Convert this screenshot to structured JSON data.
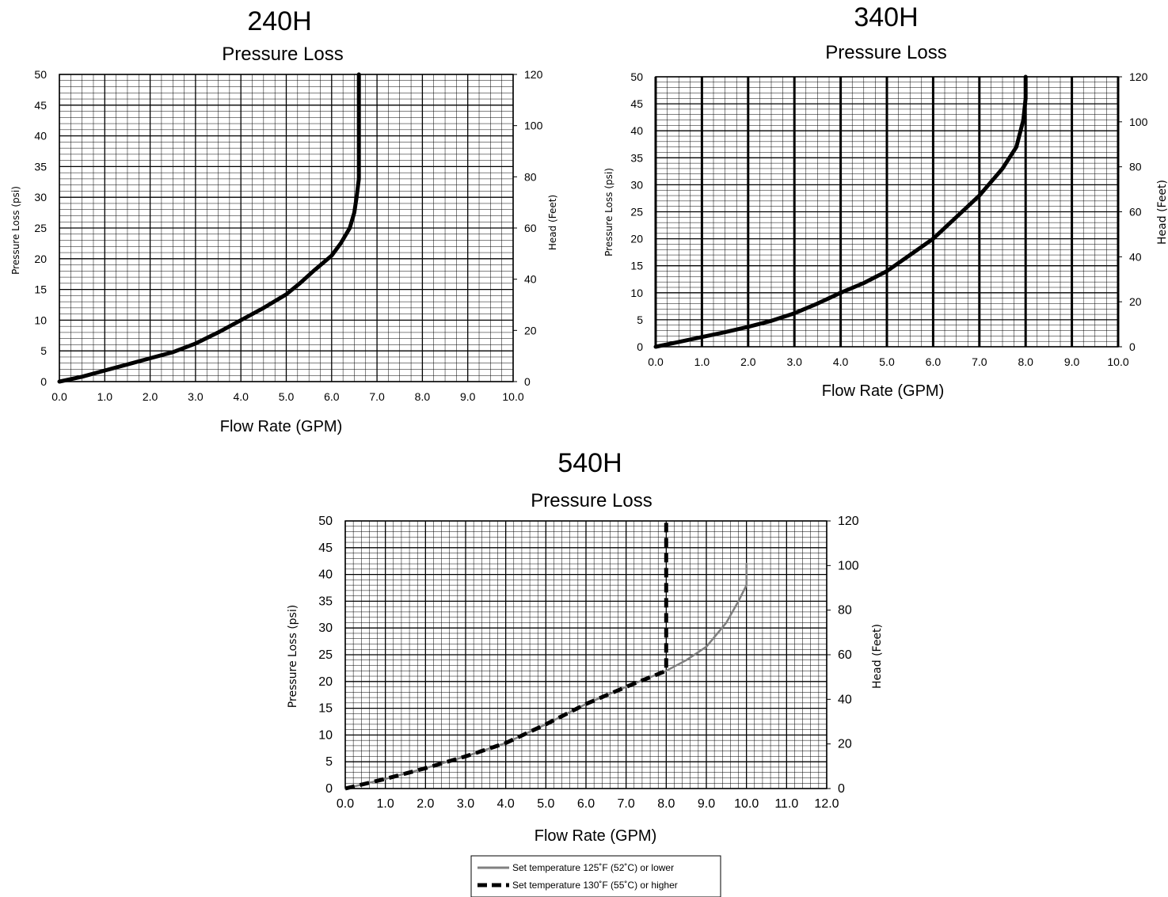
{
  "chart_data": [
    {
      "type": "line",
      "model": "240H",
      "title": "Pressure Loss",
      "xlabel": "Flow Rate (GPM)",
      "ylabel": "Pressure Loss (psi)",
      "y2label": "Head (Feet)",
      "xlim": [
        0,
        10
      ],
      "ylim": [
        0,
        50
      ],
      "y2lim": [
        0,
        120
      ],
      "x_ticks": [
        "0.0",
        "1.0",
        "2.0",
        "3.0",
        "4.0",
        "5.0",
        "6.0",
        "7.0",
        "8.0",
        "9.0",
        "10.0"
      ],
      "y_ticks": [
        "0",
        "5",
        "10",
        "15",
        "20",
        "25",
        "30",
        "35",
        "40",
        "45",
        "50"
      ],
      "y2_ticks": [
        "0",
        "20",
        "40",
        "60",
        "80",
        "100",
        "120"
      ],
      "grid": true,
      "series": [
        {
          "color": "#000000",
          "style": "solid",
          "x": [
            0,
            0.5,
            1.0,
            1.5,
            2.0,
            2.5,
            3.0,
            3.5,
            4.0,
            4.5,
            5.0,
            5.3,
            5.6,
            6.0,
            6.2,
            6.4,
            6.5,
            6.55,
            6.6,
            6.6,
            6.6
          ],
          "y": [
            0,
            0.8,
            1.8,
            2.8,
            3.8,
            4.8,
            6.2,
            8.0,
            10.0,
            12.0,
            14.2,
            16.0,
            18.0,
            20.5,
            22.5,
            25.0,
            27.5,
            30.0,
            33.0,
            40.0,
            50.0
          ]
        }
      ]
    },
    {
      "type": "line",
      "model": "340H",
      "title": "Pressure Loss",
      "xlabel": "Flow Rate (GPM)",
      "ylabel": "Pressure Loss (psi)",
      "y2label": "Head (Feet)",
      "xlim": [
        0,
        10
      ],
      "ylim": [
        0,
        50
      ],
      "y2lim": [
        0,
        120
      ],
      "x_ticks": [
        "0.0",
        "1.0",
        "2.0",
        "3.0",
        "4.0",
        "5.0",
        "6.0",
        "7.0",
        "8.0",
        "9.0",
        "10.0"
      ],
      "y_ticks": [
        "0",
        "5",
        "10",
        "15",
        "20",
        "25",
        "30",
        "35",
        "40",
        "45",
        "50"
      ],
      "y2_ticks": [
        "0",
        "20",
        "40",
        "60",
        "80",
        "100",
        "120"
      ],
      "grid": true,
      "series": [
        {
          "color": "#000000",
          "style": "solid",
          "x": [
            0,
            0.5,
            1.0,
            1.5,
            2.0,
            2.5,
            3.0,
            3.5,
            4.0,
            4.5,
            5.0,
            5.5,
            6.0,
            6.5,
            7.0,
            7.5,
            7.8,
            7.95,
            8.0,
            8.0
          ],
          "y": [
            0,
            0.9,
            1.8,
            2.7,
            3.7,
            4.8,
            6.2,
            8.0,
            10.0,
            11.8,
            14.0,
            17.0,
            20.0,
            24.0,
            28.0,
            33.0,
            37.0,
            42.0,
            46.0,
            50.0
          ]
        }
      ]
    },
    {
      "type": "line",
      "model": "540H",
      "title": "Pressure Loss",
      "xlabel": "Flow Rate (GPM)",
      "ylabel": "Pressure Loss (psi)",
      "y2label": "Head (Feet)",
      "xlim": [
        0,
        12
      ],
      "ylim": [
        0,
        50
      ],
      "y2lim": [
        0,
        120
      ],
      "x_ticks": [
        "0.0",
        "1.0",
        "2.0",
        "3.0",
        "4.0",
        "5.0",
        "6.0",
        "7.0",
        "8.0",
        "9.0",
        "10.0",
        "11.0",
        "12.0"
      ],
      "y_ticks": [
        "0",
        "5",
        "10",
        "15",
        "20",
        "25",
        "30",
        "35",
        "40",
        "45",
        "50"
      ],
      "y2_ticks": [
        "0",
        "20",
        "40",
        "60",
        "80",
        "100",
        "120"
      ],
      "grid": true,
      "legend": "bottom",
      "series": [
        {
          "name": "Set temperature 125˚F (52˚C) or lower",
          "color": "#808080",
          "style": "solid",
          "x": [
            0,
            1,
            2,
            3,
            4,
            5,
            6,
            7,
            7.5,
            8,
            8.5,
            9,
            9.5,
            9.8,
            10.0,
            10.0
          ],
          "y": [
            0,
            1.8,
            3.8,
            6.0,
            8.5,
            12.0,
            15.8,
            19.0,
            20.5,
            22.0,
            24.0,
            26.5,
            31.0,
            35.0,
            38.0,
            42.0
          ]
        },
        {
          "name": "Set temperature 130˚F (55˚C) or higher",
          "color": "#000000",
          "style": "dashed",
          "x": [
            0,
            1,
            2,
            3,
            4,
            5,
            6,
            7,
            7.5,
            8,
            8,
            8
          ],
          "y": [
            0,
            1.8,
            3.8,
            6.0,
            8.5,
            12.0,
            15.8,
            19.0,
            20.5,
            22.0,
            35.0,
            50.0
          ]
        }
      ]
    }
  ]
}
